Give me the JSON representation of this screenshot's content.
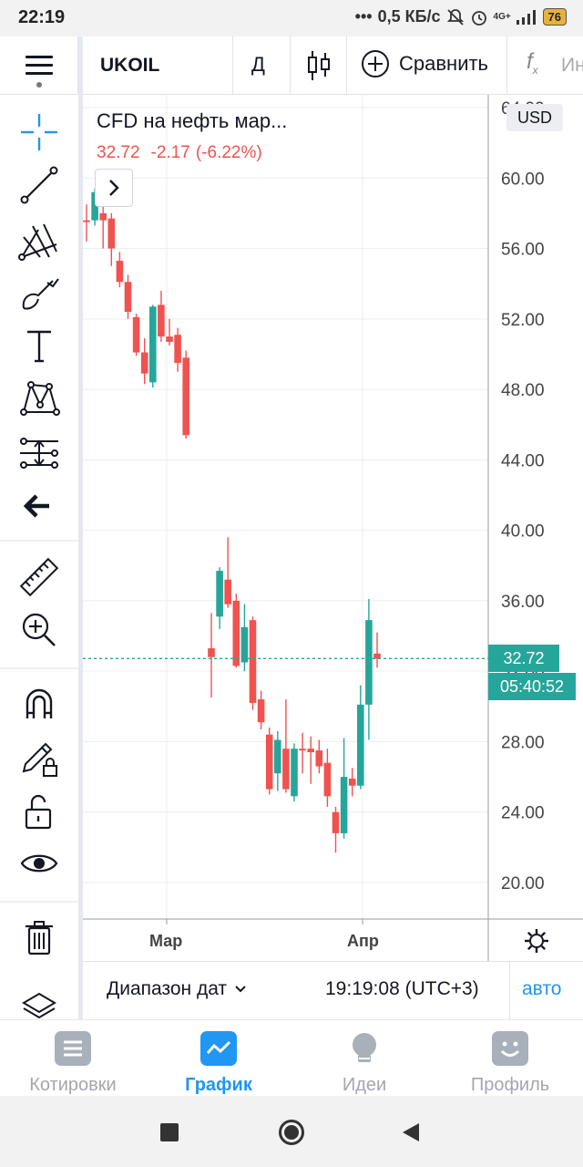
{
  "status_bar": {
    "time": "22:19",
    "network": "0,5 КБ/с",
    "signal": "4G+",
    "battery": "76"
  },
  "toolbar": {
    "symbol": "UKOIL",
    "interval": "Д",
    "compare_label": "Сравнить",
    "indicators_label": "Ин",
    "indicators_icon": "fx-icon"
  },
  "legend": {
    "title": "CFD на нефть мар...",
    "last": "32.72",
    "change": "-2.17",
    "change_pct": "(-6.22%)"
  },
  "currency": "USD",
  "price_label": "32.72",
  "countdown": "05:40:52",
  "range_bar": {
    "range_label": "Диапазон дат",
    "clock": "19:19:08 (UTC+3)",
    "auto_label": "авто"
  },
  "bottom_nav": [
    {
      "label": "Котировки",
      "icon": "list-icon",
      "active": false
    },
    {
      "label": "График",
      "icon": "chart-icon",
      "active": true
    },
    {
      "label": "Идеи",
      "icon": "bulb-icon",
      "active": false
    },
    {
      "label": "Профиль",
      "icon": "smile-icon",
      "active": false
    }
  ],
  "colors": {
    "up": "#26a69a",
    "down": "#ef5350",
    "accent": "#2196f3",
    "nav_inactive": "#a3a6ad"
  },
  "left_tools": [
    "crosshair-icon",
    "trend-line-icon",
    "pitchfork-icon",
    "brush-icon",
    "text-icon",
    "pattern-icon",
    "forecast-icon",
    "back-arrow-icon",
    "ruler-icon",
    "zoom-in-icon",
    "magnet-icon",
    "lock-drawing-icon",
    "unlock-icon",
    "eye-icon",
    "trash-icon",
    "layers-icon"
  ],
  "chart_data": {
    "type": "candlestick",
    "ylim": [
      18,
      64
    ],
    "y_ticks": [
      "64.00",
      "60.00",
      "56.00",
      "52.00",
      "48.00",
      "44.00",
      "40.00",
      "36.00",
      "32.00",
      "28.00",
      "24.00",
      "20.00"
    ],
    "x_ticks": [
      "Мар",
      "Апр"
    ],
    "grid": true,
    "last_price": 32.72,
    "candles": [
      {
        "o": 57.6,
        "h": 58.5,
        "l": 56.4,
        "c": 57.5
      },
      {
        "o": 57.6,
        "h": 59.4,
        "l": 57.3,
        "c": 59.2
      },
      {
        "o": 58.0,
        "h": 58.6,
        "l": 56.0,
        "c": 57.6
      },
      {
        "o": 57.7,
        "h": 58.0,
        "l": 55.0,
        "c": 56.0
      },
      {
        "o": 55.3,
        "h": 55.8,
        "l": 53.8,
        "c": 54.1
      },
      {
        "o": 54.1,
        "h": 54.5,
        "l": 52.0,
        "c": 52.4
      },
      {
        "o": 52.1,
        "h": 52.3,
        "l": 49.9,
        "c": 50.1
      },
      {
        "o": 50.1,
        "h": 50.9,
        "l": 48.3,
        "c": 48.9
      },
      {
        "o": 48.4,
        "h": 52.8,
        "l": 48.1,
        "c": 52.7
      },
      {
        "o": 52.8,
        "h": 53.6,
        "l": 50.7,
        "c": 51.0
      },
      {
        "o": 51.0,
        "h": 52.0,
        "l": 50.5,
        "c": 50.7
      },
      {
        "o": 51.1,
        "h": 51.5,
        "l": 49.0,
        "c": 49.5
      },
      {
        "o": 49.8,
        "h": 50.2,
        "l": 45.2,
        "c": 45.4
      },
      {
        "o": 33.3,
        "h": 35.3,
        "l": 30.5,
        "c": 32.8
      },
      {
        "o": 35.1,
        "h": 37.9,
        "l": 34.4,
        "c": 37.7
      },
      {
        "o": 37.2,
        "h": 39.6,
        "l": 35.6,
        "c": 35.8
      },
      {
        "o": 36.0,
        "h": 36.4,
        "l": 32.2,
        "c": 32.3
      },
      {
        "o": 32.5,
        "h": 35.8,
        "l": 32.0,
        "c": 34.5
      },
      {
        "o": 34.9,
        "h": 35.1,
        "l": 29.8,
        "c": 30.2
      },
      {
        "o": 30.4,
        "h": 30.9,
        "l": 28.7,
        "c": 29.1
      },
      {
        "o": 28.4,
        "h": 28.8,
        "l": 25.0,
        "c": 25.3
      },
      {
        "o": 26.2,
        "h": 28.6,
        "l": 25.2,
        "c": 28.1
      },
      {
        "o": 27.6,
        "h": 30.4,
        "l": 25.1,
        "c": 25.3
      },
      {
        "o": 24.9,
        "h": 27.9,
        "l": 24.6,
        "c": 27.6
      },
      {
        "o": 27.6,
        "h": 28.5,
        "l": 26.2,
        "c": 27.5
      },
      {
        "o": 27.6,
        "h": 28.3,
        "l": 25.6,
        "c": 27.4
      },
      {
        "o": 27.5,
        "h": 28.1,
        "l": 26.2,
        "c": 26.6
      },
      {
        "o": 26.8,
        "h": 27.6,
        "l": 24.3,
        "c": 24.9
      },
      {
        "o": 24.0,
        "h": 24.3,
        "l": 21.7,
        "c": 22.8
      },
      {
        "o": 22.8,
        "h": 28.2,
        "l": 22.5,
        "c": 26.0
      },
      {
        "o": 25.9,
        "h": 26.5,
        "l": 24.9,
        "c": 25.5
      },
      {
        "o": 25.5,
        "h": 31.2,
        "l": 25.3,
        "c": 30.1
      },
      {
        "o": 30.1,
        "h": 36.1,
        "l": 28.1,
        "c": 34.9
      },
      {
        "o": 33.0,
        "h": 34.2,
        "l": 32.2,
        "c": 32.72
      }
    ]
  }
}
